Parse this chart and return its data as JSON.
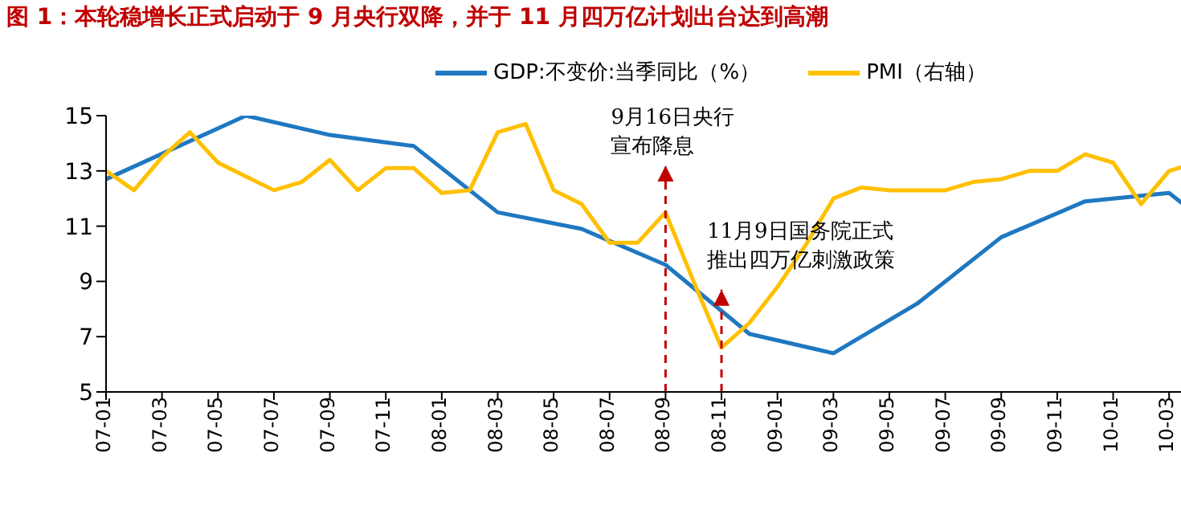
{
  "chart_data": {
    "type": "line",
    "title": "图 1：本轮稳增长正式启动于 9 月央行双降，并于 11 月四万亿计划出台达到高潮",
    "categories": [
      "07-01",
      null,
      "07-03",
      null,
      "07-05",
      null,
      "07-07",
      null,
      "07-09",
      null,
      "07-11",
      null,
      "08-01",
      null,
      "08-03",
      null,
      "08-05",
      null,
      "08-07",
      null,
      "08-09",
      null,
      "08-11",
      null,
      "09-01",
      null,
      "09-03",
      null,
      "09-05",
      null,
      "09-07",
      null,
      "09-09",
      null,
      "09-11",
      null,
      "10-01",
      null,
      "10-03",
      null
    ],
    "series": [
      {
        "name": "GDP:不变价:当季同比（%）",
        "color": "#1f78c1",
        "values": [
          12.7,
          null,
          null,
          null,
          null,
          15.0,
          null,
          null,
          14.3,
          null,
          null,
          13.9,
          null,
          null,
          11.5,
          null,
          null,
          10.9,
          null,
          null,
          9.6,
          null,
          null,
          7.1,
          null,
          null,
          6.4,
          null,
          null,
          8.2,
          null,
          null,
          10.6,
          null,
          null,
          11.9,
          null,
          null,
          12.2,
          11.4
        ]
      },
      {
        "name": "PMI（右轴）",
        "color": "#ffc000",
        "values": [
          13.0,
          12.3,
          13.5,
          14.4,
          13.3,
          12.8,
          12.3,
          12.6,
          13.4,
          12.3,
          13.1,
          13.1,
          12.2,
          12.3,
          14.4,
          14.7,
          12.3,
          11.8,
          10.4,
          10.4,
          11.5,
          9.0,
          6.6,
          7.5,
          8.8,
          10.3,
          12.0,
          12.4,
          12.3,
          12.3,
          12.3,
          12.6,
          12.7,
          13.0,
          13.0,
          13.6,
          13.3,
          11.8,
          13.0,
          13.3
        ]
      }
    ],
    "ylim": [
      5,
      15
    ],
    "yticks": [
      5,
      7,
      9,
      11,
      13,
      15
    ],
    "legend": "top",
    "marker": "none",
    "line_style": "solid",
    "ref_lines": [
      {
        "axis": "x",
        "value": "08-09",
        "label": "9月16日央行宣布降息",
        "color": "#c00000",
        "line_style": "dashed"
      },
      {
        "axis": "x",
        "value": "08-11",
        "label": "11月9日国务院正式推出四万亿刺激政策",
        "color": "#c00000",
        "line_style": "dashed"
      }
    ]
  }
}
